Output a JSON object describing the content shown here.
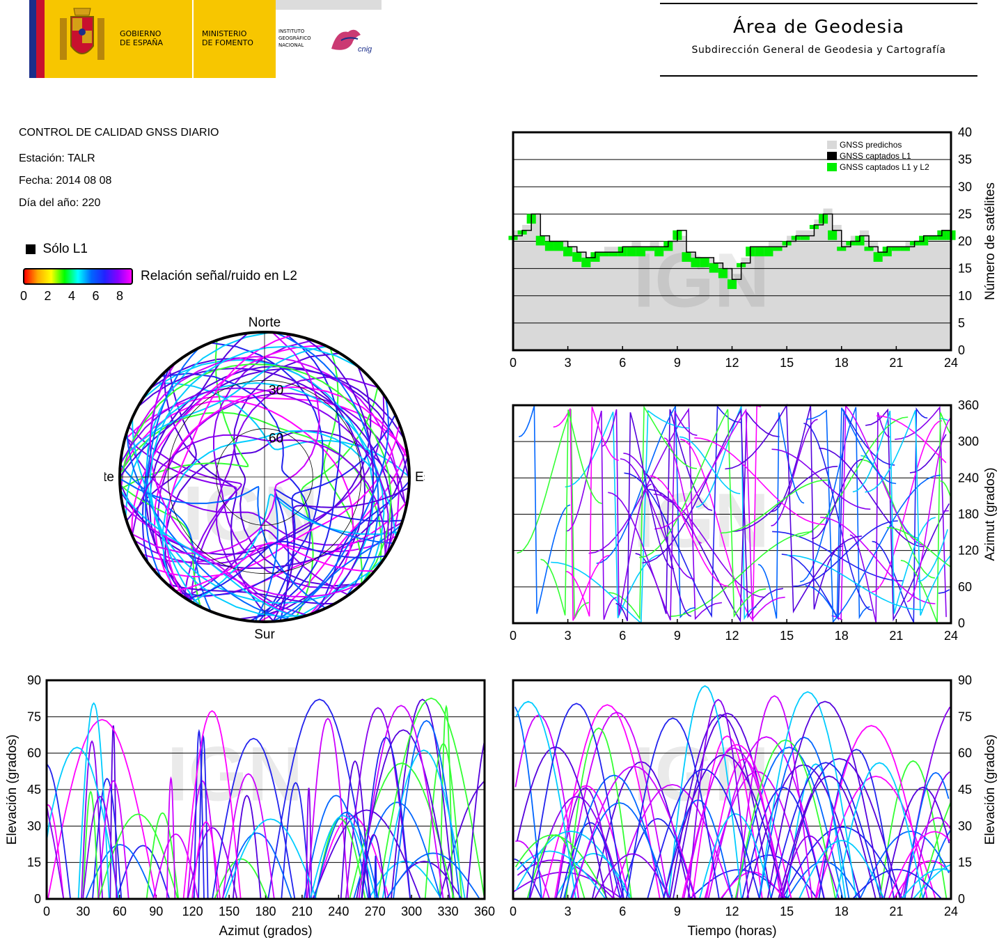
{
  "header": {
    "gov_line1": "GOBIERNO",
    "gov_line2": "DE ESPAÑA",
    "ministry_line1": "MINISTERIO",
    "ministry_line2": "DE FOMENTO",
    "institute_line1": "INSTITUTO",
    "institute_line2": "GEOGRÁFICO",
    "institute_line3": "NACIONAL",
    "cnig_logo_text": "cnig",
    "area_title": "Área de Geodesia",
    "area_subtitle": "Subdirección General de Geodesia y Cartografía"
  },
  "info": {
    "title": "CONTROL DE CALIDAD GNSS DIARIO",
    "station": "Estación: TALR",
    "date": "Fecha: 2014 08 08",
    "doy": "Día del año: 220"
  },
  "legend": {
    "l1_only": "Sólo L1",
    "snr_label": "Relación señal/ruido en L2",
    "snr_ticks": [
      "0",
      "2",
      "4",
      "6",
      "8"
    ],
    "snr_colors": [
      "#ff0000",
      "#ffaa00",
      "#ffff00",
      "#00ff00",
      "#00ffff",
      "#0066ff",
      "#2222ff",
      "#8800ff",
      "#ff00ff"
    ]
  },
  "watermark": "IGN",
  "colors": {
    "predicted": "#d9d9d9",
    "l1": "#000000",
    "l1l2": "#00ee00",
    "traces": [
      "#ff00ff",
      "#cc00ff",
      "#8800ee",
      "#5500dd",
      "#2222ee",
      "#0066ff",
      "#00ccff",
      "#33ff33"
    ]
  },
  "chart_data": [
    {
      "id": "skyplot",
      "type": "scatter",
      "directions": {
        "north": "Norte",
        "south": "Sur",
        "east": "Este",
        "west": "Oeste"
      },
      "ring_labels": [
        "30",
        "60"
      ],
      "description_values": {
        "elevation_rings": [
          30,
          60
        ]
      }
    },
    {
      "id": "satellites",
      "type": "line",
      "ylabel": "Número de satélites",
      "xlim": [
        0,
        24
      ],
      "ylim": [
        0,
        40
      ],
      "xticks": [
        "0",
        "3",
        "6",
        "9",
        "12",
        "15",
        "18",
        "21",
        "24"
      ],
      "yticks": [
        "0",
        "5",
        "10",
        "15",
        "20",
        "25",
        "30",
        "35",
        "40"
      ],
      "legend": [
        "GNSS predichos",
        "GNSS captados L1",
        "GNSS captados L1 y L2"
      ],
      "x": [
        0,
        0.5,
        1,
        1.5,
        2,
        2.5,
        3,
        3.5,
        4,
        4.5,
        5,
        5.5,
        6,
        6.5,
        7,
        7.5,
        8,
        8.5,
        9,
        9.5,
        10,
        10.5,
        11,
        11.5,
        12,
        12.5,
        13,
        13.5,
        14,
        14.5,
        15,
        15.5,
        16,
        16.5,
        17,
        17.5,
        18,
        18.5,
        19,
        19.5,
        20,
        20.5,
        21,
        21.5,
        22,
        22.5,
        23,
        23.5,
        24
      ],
      "series": [
        {
          "name": "GNSS predichos",
          "values": [
            22,
            23,
            25,
            21,
            20,
            20,
            19,
            18,
            17,
            18,
            19,
            19,
            19,
            20,
            19,
            20,
            19,
            20,
            21,
            18,
            17,
            17,
            16,
            15,
            14,
            17,
            19,
            19,
            20,
            20,
            21,
            22,
            22,
            24,
            26,
            23,
            20,
            21,
            22,
            20,
            18,
            19,
            19,
            20,
            20,
            21,
            21,
            22,
            22
          ]
        },
        {
          "name": "GNSS captados L1",
          "values": [
            21,
            22,
            25,
            21,
            20,
            20,
            19,
            18,
            17,
            18,
            18,
            18,
            19,
            19,
            19,
            19,
            19,
            20,
            22,
            18,
            17,
            17,
            16,
            15,
            13,
            16,
            19,
            19,
            19,
            19,
            20,
            21,
            21,
            23,
            25,
            22,
            19,
            20,
            21,
            19,
            18,
            19,
            19,
            19,
            20,
            21,
            21,
            22,
            22
          ]
        },
        {
          "name": "GNSS captados L1 y L2",
          "values": [
            21,
            22,
            24,
            20,
            19,
            19,
            18,
            17,
            16,
            17,
            18,
            18,
            18,
            18,
            18,
            19,
            18,
            19,
            21,
            17,
            16,
            16,
            15,
            14,
            12,
            16,
            18,
            18,
            18,
            19,
            20,
            21,
            21,
            23,
            24,
            21,
            19,
            20,
            20,
            19,
            17,
            18,
            19,
            19,
            20,
            20,
            21,
            21,
            21
          ]
        }
      ]
    },
    {
      "id": "azimuth_time",
      "type": "scatter",
      "ylabel": "Azimut (grados)",
      "xlim": [
        0,
        24
      ],
      "ylim": [
        0,
        360
      ],
      "xticks": [
        "0",
        "3",
        "6",
        "9",
        "12",
        "15",
        "18",
        "21",
        "24"
      ],
      "yticks": [
        "0",
        "60",
        "120",
        "180",
        "240",
        "300",
        "360"
      ]
    },
    {
      "id": "elevation_azimuth",
      "type": "scatter",
      "xlabel": "Azimut (grados)",
      "ylabel": "Elevación (grados)",
      "xlim": [
        0,
        360
      ],
      "ylim": [
        0,
        90
      ],
      "xticks": [
        "0",
        "30",
        "60",
        "90",
        "120",
        "150",
        "180",
        "210",
        "240",
        "270",
        "300",
        "330",
        "360"
      ],
      "yticks": [
        "0",
        "15",
        "30",
        "45",
        "60",
        "75",
        "90"
      ]
    },
    {
      "id": "elevation_time",
      "type": "line",
      "xlabel": "Tiempo (horas)",
      "ylabel": "Elevación (grados)",
      "xlim": [
        0,
        24
      ],
      "ylim": [
        0,
        90
      ],
      "xticks": [
        "0",
        "3",
        "6",
        "9",
        "12",
        "15",
        "18",
        "21",
        "24"
      ],
      "yticks": [
        "0",
        "15",
        "30",
        "45",
        "60",
        "75",
        "90"
      ]
    }
  ]
}
